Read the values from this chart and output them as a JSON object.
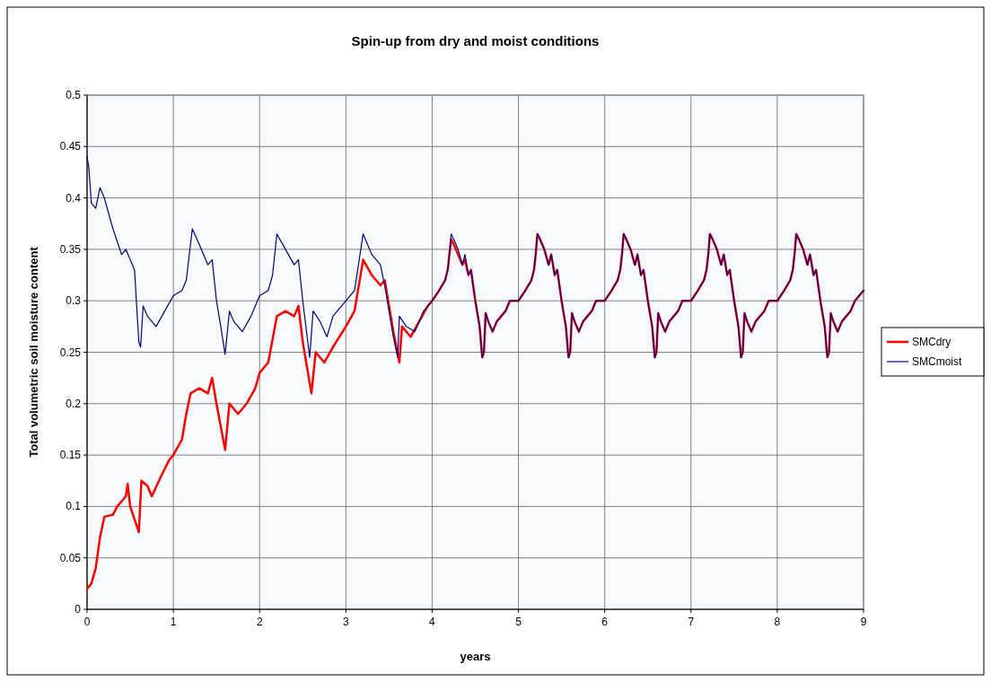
{
  "chart_data": {
    "type": "line",
    "title": "Spin-up from dry and moist conditions",
    "xlabel": "years",
    "ylabel": "Total volumetric soil moisture content",
    "xlim": [
      0,
      9
    ],
    "xticks": [
      0,
      1,
      2,
      3,
      4,
      5,
      6,
      7,
      8,
      9
    ],
    "ylim": [
      0,
      0.5
    ],
    "yticks": [
      0,
      0.05,
      0.1,
      0.15,
      0.2,
      0.25,
      0.3,
      0.35,
      0.4,
      0.45,
      0.5
    ],
    "grid": true,
    "legend": "right",
    "series": [
      {
        "name": "SMCdry",
        "color": "#ff0000",
        "x": [
          0,
          0.05,
          0.1,
          0.15,
          0.2,
          0.3,
          0.35,
          0.45,
          0.47,
          0.5,
          0.6,
          0.63,
          0.7,
          0.75,
          0.85,
          0.95,
          1.0,
          1.1,
          1.15,
          1.2,
          1.3,
          1.4,
          1.45,
          1.5,
          1.6,
          1.65,
          1.75,
          1.85,
          1.95,
          2.0,
          2.1,
          2.2,
          2.3,
          2.4,
          2.45,
          2.5,
          2.6,
          2.65,
          2.75,
          2.85,
          3.0,
          3.1,
          3.2,
          3.3,
          3.4,
          3.45,
          3.55,
          3.62,
          3.65,
          3.75,
          3.85,
          3.95,
          4.0,
          4.08,
          4.15,
          4.18,
          4.2,
          4.22,
          4.25,
          4.3,
          4.35,
          4.38,
          4.42,
          4.45,
          4.5,
          4.55,
          4.58,
          4.6,
          4.62,
          4.65,
          4.7,
          4.75,
          4.8,
          4.85,
          4.9,
          5.0,
          5.08,
          5.15,
          5.18,
          5.2,
          5.22,
          5.25,
          5.3,
          5.35,
          5.38,
          5.42,
          5.45,
          5.5,
          5.55,
          5.58,
          5.6,
          5.62,
          5.65,
          5.7,
          5.75,
          5.8,
          5.85,
          5.9,
          6.0,
          6.08,
          6.15,
          6.18,
          6.2,
          6.22,
          6.25,
          6.3,
          6.35,
          6.38,
          6.42,
          6.45,
          6.5,
          6.55,
          6.58,
          6.6,
          6.62,
          6.65,
          6.7,
          6.75,
          6.8,
          6.85,
          6.9,
          7.0,
          7.08,
          7.15,
          7.18,
          7.2,
          7.22,
          7.25,
          7.3,
          7.35,
          7.38,
          7.42,
          7.45,
          7.5,
          7.55,
          7.58,
          7.6,
          7.62,
          7.65,
          7.7,
          7.75,
          7.8,
          7.85,
          7.9,
          8.0,
          8.08,
          8.15,
          8.18,
          8.2,
          8.22,
          8.25,
          8.3,
          8.35,
          8.38,
          8.42,
          8.45,
          8.5,
          8.55,
          8.58,
          8.6,
          8.62,
          8.65,
          8.7,
          8.75,
          8.8,
          8.85,
          8.9,
          9.0
        ],
        "values": [
          0.02,
          0.025,
          0.04,
          0.07,
          0.09,
          0.092,
          0.1,
          0.11,
          0.122,
          0.1,
          0.075,
          0.125,
          0.12,
          0.11,
          0.128,
          0.145,
          0.15,
          0.165,
          0.19,
          0.21,
          0.215,
          0.21,
          0.225,
          0.2,
          0.155,
          0.2,
          0.19,
          0.2,
          0.215,
          0.23,
          0.24,
          0.285,
          0.29,
          0.285,
          0.295,
          0.26,
          0.21,
          0.25,
          0.24,
          0.255,
          0.275,
          0.29,
          0.34,
          0.325,
          0.315,
          0.32,
          0.27,
          0.24,
          0.275,
          0.265,
          0.28,
          0.295,
          0.3,
          0.31,
          0.32,
          0.33,
          0.345,
          0.36,
          0.355,
          0.345,
          0.335,
          0.34,
          0.325,
          0.33,
          0.3,
          0.275,
          0.245,
          0.25,
          0.288,
          0.28,
          0.27,
          0.28,
          0.285,
          0.29,
          0.3,
          0.3,
          0.31,
          0.32,
          0.33,
          0.345,
          0.365,
          0.36,
          0.35,
          0.335,
          0.345,
          0.325,
          0.33,
          0.3,
          0.275,
          0.245,
          0.25,
          0.288,
          0.28,
          0.27,
          0.28,
          0.285,
          0.29,
          0.3,
          0.3,
          0.31,
          0.32,
          0.33,
          0.345,
          0.365,
          0.36,
          0.35,
          0.335,
          0.345,
          0.325,
          0.33,
          0.3,
          0.275,
          0.245,
          0.25,
          0.288,
          0.28,
          0.27,
          0.28,
          0.285,
          0.29,
          0.3,
          0.3,
          0.31,
          0.32,
          0.33,
          0.345,
          0.365,
          0.36,
          0.35,
          0.335,
          0.345,
          0.325,
          0.33,
          0.3,
          0.275,
          0.245,
          0.25,
          0.288,
          0.28,
          0.27,
          0.28,
          0.285,
          0.29,
          0.3,
          0.3,
          0.31,
          0.32,
          0.33,
          0.345,
          0.365,
          0.36,
          0.35,
          0.335,
          0.345,
          0.325,
          0.33,
          0.3,
          0.275,
          0.245,
          0.25,
          0.288,
          0.28,
          0.27,
          0.28,
          0.285,
          0.29,
          0.3,
          0.31
        ]
      },
      {
        "name": "SMCmoist",
        "color": "#000080",
        "x": [
          0,
          0.02,
          0.05,
          0.1,
          0.15,
          0.2,
          0.3,
          0.4,
          0.45,
          0.55,
          0.6,
          0.62,
          0.65,
          0.7,
          0.8,
          0.9,
          1.0,
          1.1,
          1.15,
          1.22,
          1.3,
          1.4,
          1.45,
          1.5,
          1.55,
          1.6,
          1.65,
          1.7,
          1.8,
          1.9,
          2.0,
          2.1,
          2.15,
          2.2,
          2.3,
          2.4,
          2.45,
          2.5,
          2.58,
          2.62,
          2.7,
          2.78,
          2.85,
          3.0,
          3.1,
          3.2,
          3.3,
          3.4,
          3.45,
          3.55,
          3.6,
          3.62,
          3.7,
          3.8,
          3.9,
          4.0,
          4.08,
          4.15,
          4.18,
          4.2,
          4.22,
          4.25,
          4.3,
          4.35,
          4.38,
          4.42,
          4.45,
          4.5,
          4.55,
          4.58,
          4.6,
          4.62,
          4.65,
          4.7,
          4.75,
          4.8,
          4.85,
          4.9,
          5.0,
          5.08,
          5.15,
          5.18,
          5.2,
          5.22,
          5.25,
          5.3,
          5.35,
          5.38,
          5.42,
          5.45,
          5.5,
          5.55,
          5.58,
          5.6,
          5.62,
          5.65,
          5.7,
          5.75,
          5.8,
          5.85,
          5.9,
          6.0,
          6.08,
          6.15,
          6.18,
          6.2,
          6.22,
          6.25,
          6.3,
          6.35,
          6.38,
          6.42,
          6.45,
          6.5,
          6.55,
          6.58,
          6.6,
          6.62,
          6.65,
          6.7,
          6.75,
          6.8,
          6.85,
          6.9,
          7.0,
          7.08,
          7.15,
          7.18,
          7.2,
          7.22,
          7.25,
          7.3,
          7.35,
          7.38,
          7.42,
          7.45,
          7.5,
          7.55,
          7.58,
          7.6,
          7.62,
          7.65,
          7.7,
          7.75,
          7.8,
          7.85,
          7.9,
          8.0,
          8.08,
          8.15,
          8.18,
          8.2,
          8.22,
          8.25,
          8.3,
          8.35,
          8.38,
          8.42,
          8.45,
          8.5,
          8.55,
          8.58,
          8.6,
          8.62,
          8.65,
          8.7,
          8.75,
          8.8,
          8.85,
          8.9,
          9.0
        ],
        "values": [
          0.44,
          0.43,
          0.395,
          0.39,
          0.41,
          0.4,
          0.37,
          0.345,
          0.35,
          0.33,
          0.26,
          0.255,
          0.295,
          0.285,
          0.275,
          0.29,
          0.305,
          0.31,
          0.32,
          0.37,
          0.355,
          0.335,
          0.34,
          0.3,
          0.275,
          0.248,
          0.29,
          0.28,
          0.27,
          0.285,
          0.305,
          0.31,
          0.325,
          0.365,
          0.35,
          0.335,
          0.34,
          0.3,
          0.245,
          0.29,
          0.28,
          0.265,
          0.285,
          0.3,
          0.31,
          0.365,
          0.345,
          0.335,
          0.315,
          0.265,
          0.245,
          0.285,
          0.275,
          0.27,
          0.29,
          0.3,
          0.31,
          0.32,
          0.33,
          0.345,
          0.365,
          0.36,
          0.35,
          0.335,
          0.345,
          0.325,
          0.33,
          0.3,
          0.275,
          0.245,
          0.25,
          0.288,
          0.28,
          0.27,
          0.28,
          0.285,
          0.29,
          0.3,
          0.3,
          0.31,
          0.32,
          0.33,
          0.345,
          0.365,
          0.36,
          0.35,
          0.335,
          0.345,
          0.325,
          0.33,
          0.3,
          0.275,
          0.245,
          0.25,
          0.288,
          0.28,
          0.27,
          0.28,
          0.285,
          0.29,
          0.3,
          0.3,
          0.31,
          0.32,
          0.33,
          0.345,
          0.365,
          0.36,
          0.35,
          0.335,
          0.345,
          0.325,
          0.33,
          0.3,
          0.275,
          0.245,
          0.25,
          0.288,
          0.28,
          0.27,
          0.28,
          0.285,
          0.29,
          0.3,
          0.3,
          0.31,
          0.32,
          0.33,
          0.345,
          0.365,
          0.36,
          0.35,
          0.335,
          0.345,
          0.325,
          0.33,
          0.3,
          0.275,
          0.245,
          0.25,
          0.288,
          0.28,
          0.27,
          0.28,
          0.285,
          0.29,
          0.3,
          0.3,
          0.31,
          0.32,
          0.33,
          0.345,
          0.365,
          0.36,
          0.35,
          0.335,
          0.345,
          0.325,
          0.33,
          0.3,
          0.275,
          0.245,
          0.25,
          0.288,
          0.28,
          0.27,
          0.28,
          0.285,
          0.29,
          0.3,
          0.31
        ]
      }
    ]
  }
}
